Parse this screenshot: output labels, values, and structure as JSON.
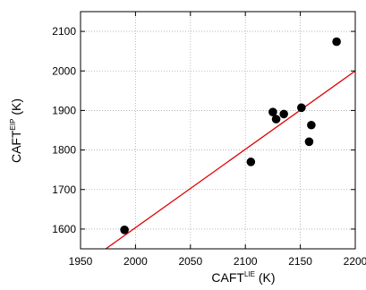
{
  "chart_data": {
    "type": "scatter",
    "xlabel": {
      "base": "CAFT",
      "sup": "LIE",
      "unit": " (K)"
    },
    "ylabel": {
      "base": "CAFT",
      "sup": "EIP",
      "unit": " (K)"
    },
    "xlim": [
      1950,
      2200
    ],
    "ylim": [
      1550,
      2150
    ],
    "xticks": [
      1950,
      2000,
      2050,
      2100,
      2150,
      2200
    ],
    "yticks": [
      1600,
      1700,
      1800,
      1900,
      2000,
      2100
    ],
    "grid": true,
    "grid_style": "dotted",
    "points": [
      {
        "x": 1990,
        "y": 1598
      },
      {
        "x": 2105,
        "y": 1770
      },
      {
        "x": 2125,
        "y": 1896
      },
      {
        "x": 2128,
        "y": 1878
      },
      {
        "x": 2135,
        "y": 1891
      },
      {
        "x": 2151,
        "y": 1907
      },
      {
        "x": 2158,
        "y": 1821
      },
      {
        "x": 2160,
        "y": 1863
      },
      {
        "x": 2183,
        "y": 2074
      }
    ],
    "fit_line": {
      "x": [
        1973,
        2200
      ],
      "y": [
        1550,
        2000
      ]
    },
    "colors": {
      "points": "#000000",
      "fit_line": "#e00000",
      "grid": "#aaaaaa"
    }
  }
}
